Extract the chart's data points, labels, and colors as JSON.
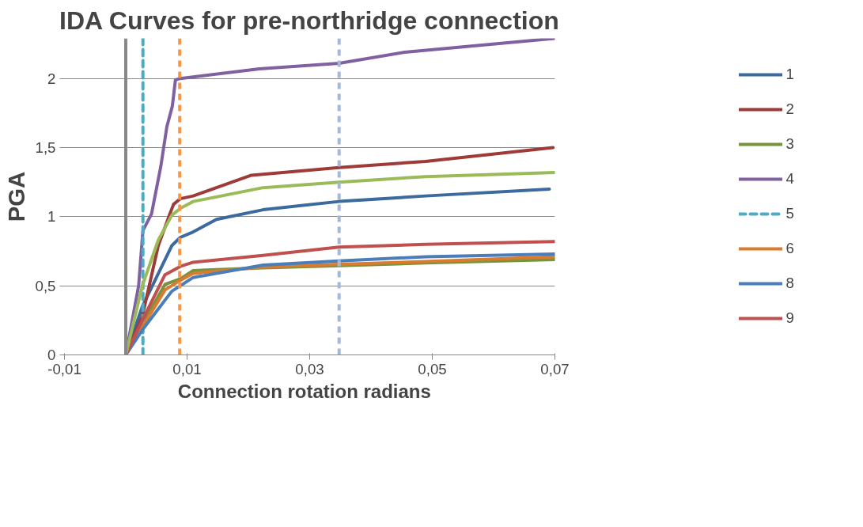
{
  "chart_data": {
    "type": "line",
    "title": "IDA Curves for pre-northridge connection",
    "xlabel": "Connection  rotation  radians",
    "ylabel": "PGA",
    "xlim": [
      -0.01,
      0.07
    ],
    "ylim": [
      0,
      2.29
    ],
    "xticks": [
      {
        "value": -0.01,
        "label": "-0,01"
      },
      {
        "value": 0.01,
        "label": "0,01"
      },
      {
        "value": 0.03,
        "label": "0,03"
      },
      {
        "value": 0.05,
        "label": "0,05"
      },
      {
        "value": 0.07,
        "label": "0,07"
      }
    ],
    "yticks": [
      0,
      {
        "value": 0.5,
        "label": "0,5"
      },
      1,
      {
        "value": 1.5,
        "label": "1,5"
      },
      2
    ],
    "grid": "y",
    "legend": "right",
    "line_style": "solid",
    "series": [
      {
        "name": "1",
        "color": "#3c6a9e",
        "x": [
          0,
          0.0027,
          0.0075,
          0.0089,
          0.011,
          0.0148,
          0.0224,
          0.0348,
          0.0489,
          0.0691
        ],
        "values": [
          0,
          0.35,
          0.79,
          0.85,
          0.89,
          0.98,
          1.05,
          1.11,
          1.15,
          1.2
        ]
      },
      {
        "name": "2",
        "color": "#9e3b38",
        "x": [
          0,
          0.0027,
          0.0053,
          0.0071,
          0.0078,
          0.0089,
          0.011,
          0.0205,
          0.0348,
          0.0489,
          0.0697
        ],
        "values": [
          0,
          0.28,
          0.79,
          1.01,
          1.09,
          1.13,
          1.15,
          1.3,
          1.355,
          1.4,
          1.5
        ]
      },
      {
        "name": "3",
        "color": "#77933c",
        "x": [
          0,
          0.0027,
          0.0064,
          0.0089,
          0.011,
          0.0224,
          0.0348,
          0.0489,
          0.07
        ],
        "values": [
          0,
          0.22,
          0.51,
          0.55,
          0.61,
          0.63,
          0.645,
          0.665,
          0.69
        ]
      },
      {
        "name": "4",
        "color": "#7f60a0",
        "x": [
          0,
          0.0021,
          0.0028,
          0.0042,
          0.0057,
          0.0067,
          0.0076,
          0.0081,
          0.0089,
          0.0218,
          0.0348,
          0.0455,
          0.07
        ],
        "values": [
          0,
          0.5,
          0.9,
          1.02,
          1.36,
          1.65,
          1.8,
          1.99,
          2.0,
          2.07,
          2.11,
          2.19,
          2.29
        ]
      },
      {
        "name": "5",
        "color": "#4bacc6",
        "line_style": "dashed",
        "x": [
          0.0028,
          0.0028
        ],
        "values": [
          0,
          2.29
        ]
      },
      {
        "name": "6",
        "color": "#d97c2f",
        "x": [
          0,
          0.0027,
          0.0064,
          0.0089,
          0.011,
          0.0224,
          0.0348,
          0.0489,
          0.07
        ],
        "values": [
          0,
          0.2,
          0.47,
          0.54,
          0.59,
          0.635,
          0.655,
          0.675,
          0.71
        ]
      },
      {
        "name": "8",
        "color": "#4a7ebb",
        "x": [
          0,
          0.0027,
          0.0075,
          0.0089,
          0.011,
          0.0224,
          0.0348,
          0.0489,
          0.07
        ],
        "values": [
          0,
          0.18,
          0.46,
          0.5,
          0.56,
          0.65,
          0.68,
          0.71,
          0.73
        ]
      },
      {
        "name": "9",
        "color": "#c0504d",
        "x": [
          0,
          0.0027,
          0.0064,
          0.0089,
          0.011,
          0.0224,
          0.0348,
          0.0489,
          0.07
        ],
        "values": [
          0,
          0.25,
          0.58,
          0.64,
          0.67,
          0.72,
          0.78,
          0.8,
          0.82
        ]
      },
      {
        "color": "#9bbb59",
        "x": [
          0,
          0.0027,
          0.0053,
          0.0075,
          0.0089,
          0.011,
          0.0224,
          0.0348,
          0.0489,
          0.07
        ],
        "values": [
          0,
          0.5,
          0.83,
          1.01,
          1.06,
          1.11,
          1.21,
          1.25,
          1.29,
          1.32
        ]
      }
    ],
    "ref_lines": [
      {
        "axis": "x",
        "value": 0,
        "color": "#888888",
        "line_style": "solid"
      },
      {
        "axis": "x",
        "value": 0.0088,
        "color": "#f79646",
        "line_style": "dashed"
      },
      {
        "axis": "x",
        "value": 0.0348,
        "color": "#a5b8d8",
        "line_style": "dashed"
      }
    ]
  }
}
